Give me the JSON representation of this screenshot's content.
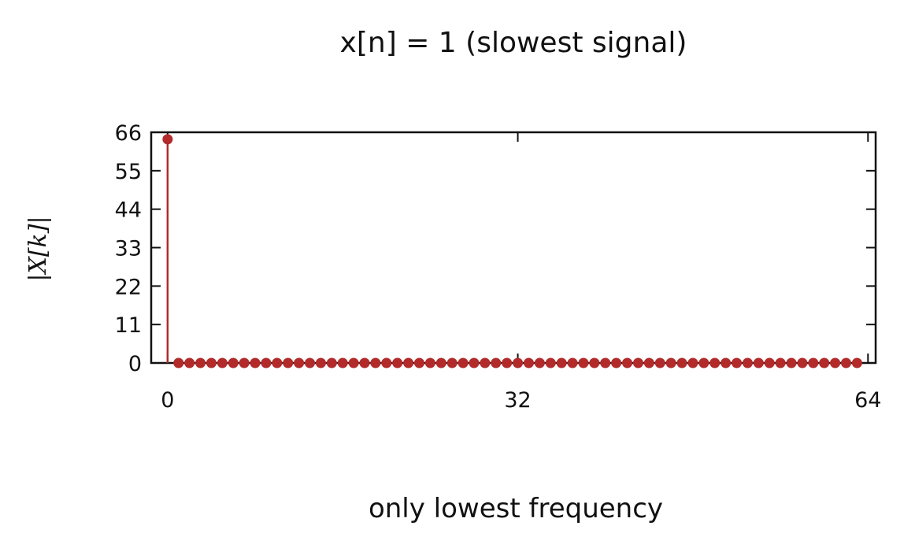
{
  "chart_data": {
    "type": "stem",
    "title": "x[n] = 1 (slowest signal)",
    "ylabel": "|X[k]|",
    "xlabel": "",
    "caption": "only lowest frequency",
    "x_ticks": [
      0,
      32,
      64
    ],
    "y_ticks": [
      0,
      11,
      22,
      33,
      44,
      55,
      66
    ],
    "xlim": [
      -1.5,
      64.7
    ],
    "ylim": [
      0,
      66
    ],
    "grid": false,
    "series": [
      {
        "color": "#b22a2a",
        "x": [
          0,
          1,
          2,
          3,
          4,
          5,
          6,
          7,
          8,
          9,
          10,
          11,
          12,
          13,
          14,
          15,
          16,
          17,
          18,
          19,
          20,
          21,
          22,
          23,
          24,
          25,
          26,
          27,
          28,
          29,
          30,
          31,
          32,
          33,
          34,
          35,
          36,
          37,
          38,
          39,
          40,
          41,
          42,
          43,
          44,
          45,
          46,
          47,
          48,
          49,
          50,
          51,
          52,
          53,
          54,
          55,
          56,
          57,
          58,
          59,
          60,
          61,
          62,
          63
        ],
        "y": [
          64,
          0,
          0,
          0,
          0,
          0,
          0,
          0,
          0,
          0,
          0,
          0,
          0,
          0,
          0,
          0,
          0,
          0,
          0,
          0,
          0,
          0,
          0,
          0,
          0,
          0,
          0,
          0,
          0,
          0,
          0,
          0,
          0,
          0,
          0,
          0,
          0,
          0,
          0,
          0,
          0,
          0,
          0,
          0,
          0,
          0,
          0,
          0,
          0,
          0,
          0,
          0,
          0,
          0,
          0,
          0,
          0,
          0,
          0,
          0,
          0,
          0,
          0,
          0
        ]
      }
    ]
  }
}
